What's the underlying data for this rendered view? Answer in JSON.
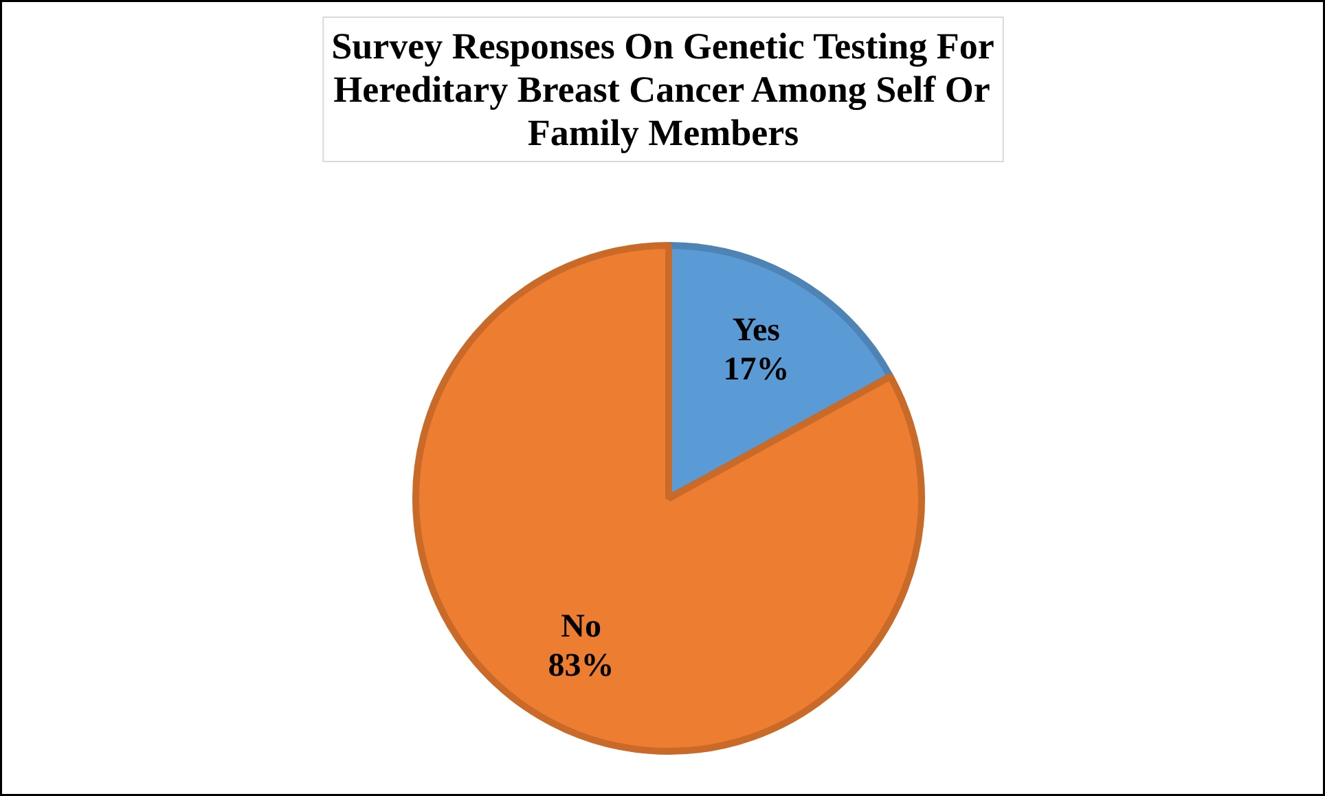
{
  "chart_data": {
    "type": "pie",
    "title": "Survey Responses On Genetic Testing For Hereditary Breast Cancer Among Self Or Family Members",
    "categories": [
      "Yes",
      "No"
    ],
    "values": [
      17,
      83
    ],
    "colors": [
      "#5b9bd5",
      "#ed7d31"
    ],
    "value_labels": [
      "17%",
      "83%"
    ]
  }
}
